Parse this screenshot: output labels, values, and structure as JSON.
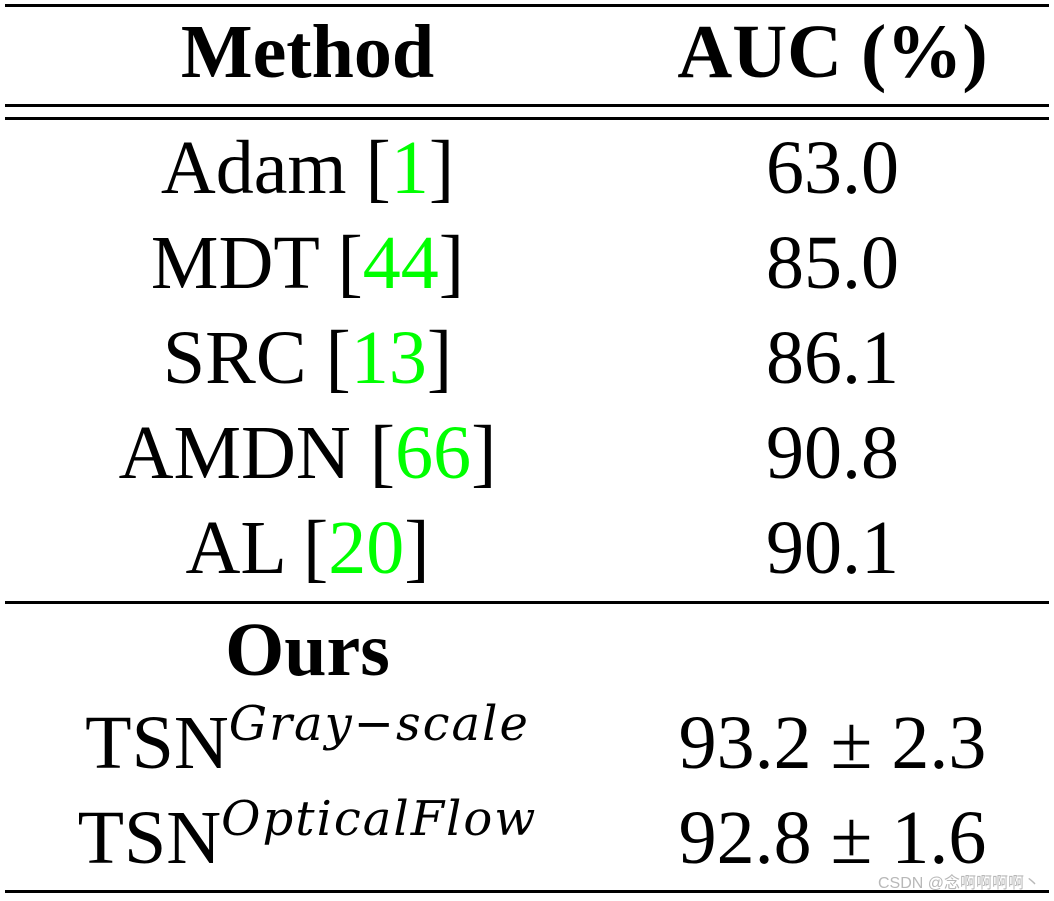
{
  "table": {
    "headers": {
      "method": "Method",
      "auc": "AUC (%)"
    },
    "rows": [
      {
        "method": "Adam",
        "ref": "1",
        "auc": "63.0"
      },
      {
        "method": "MDT",
        "ref": "44",
        "auc": "85.0"
      },
      {
        "method": "SRC",
        "ref": "13",
        "auc": "86.1"
      },
      {
        "method": "AMDN",
        "ref": "66",
        "auc": "90.8"
      },
      {
        "method": "AL",
        "ref": "20",
        "auc": "90.1"
      }
    ],
    "section_label": "Ours",
    "ours_rows": [
      {
        "method_base": "TSN",
        "method_sup": "Gray−scale",
        "auc": "93.2 ± 2.3"
      },
      {
        "method_base": "TSN",
        "method_sup": "OpticalFlow",
        "auc": "92.8 ± 1.6"
      }
    ]
  },
  "colors": {
    "reference_link": "#00ff00",
    "text": "#000000",
    "background": "#ffffff"
  },
  "watermark": "CSDN @念啊啊啊啊丶"
}
